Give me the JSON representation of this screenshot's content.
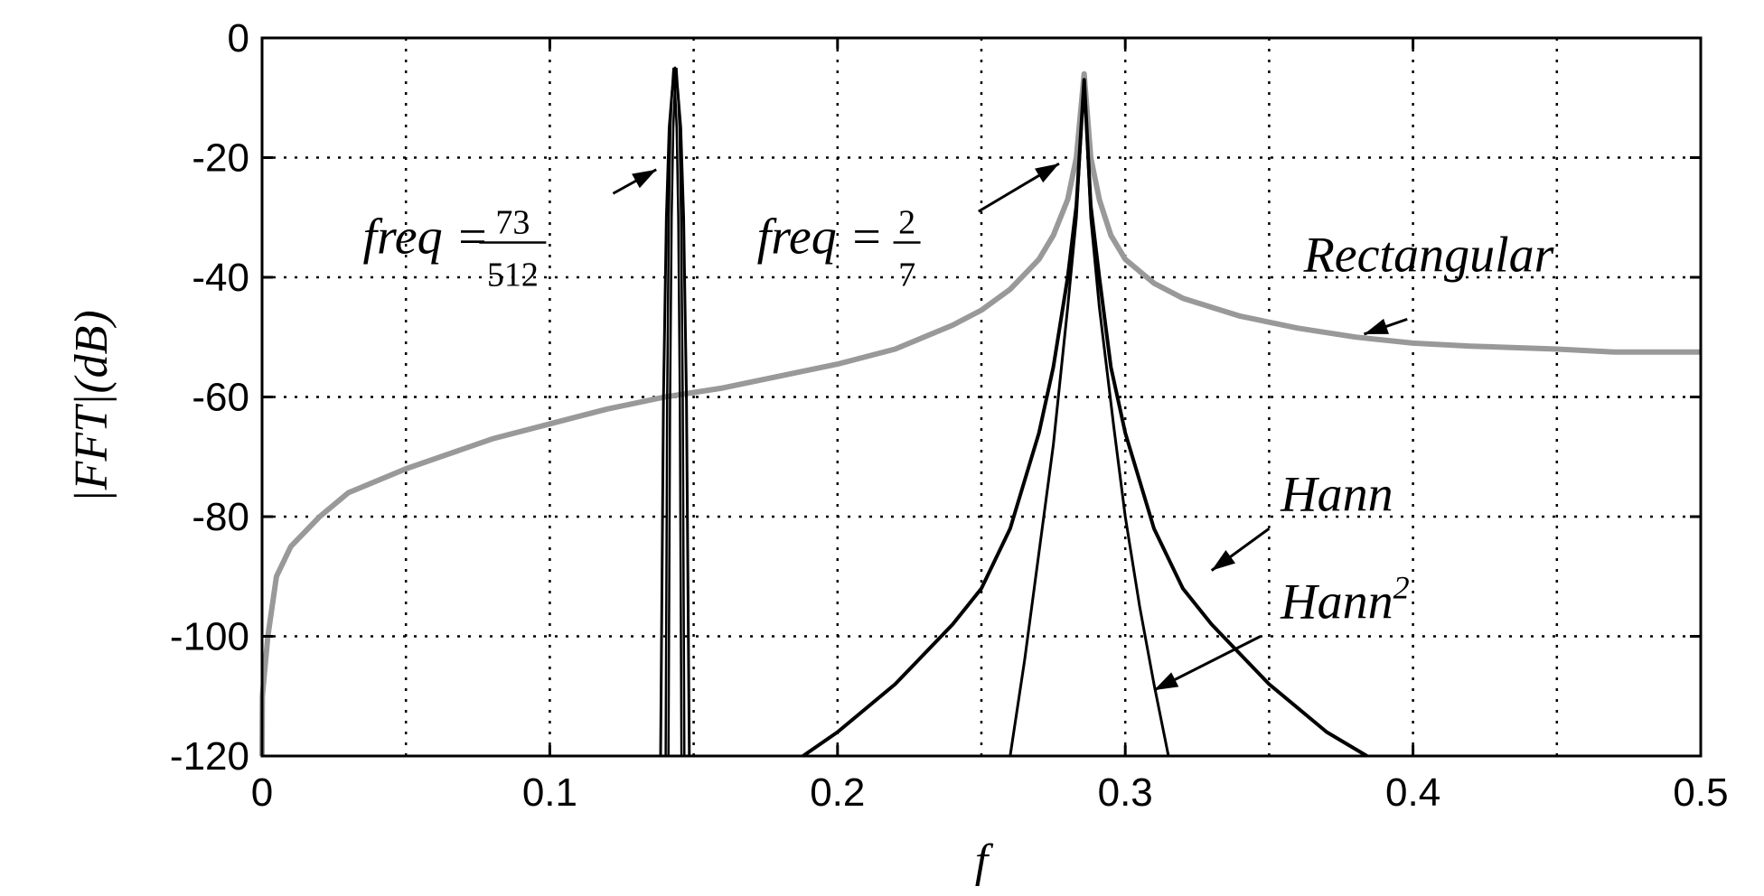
{
  "chart_data": {
    "type": "line",
    "xlabel": "f",
    "ylabel": "|FFT|(dB)",
    "xlim": [
      0,
      0.5
    ],
    "ylim": [
      -120,
      0
    ],
    "xticks": [
      "0",
      "0.1",
      "0.2",
      "0.3",
      "0.4",
      "0.5"
    ],
    "yticks": [
      "0",
      "-20",
      "-40",
      "-60",
      "-80",
      "-100",
      "-120"
    ],
    "grid": true,
    "series": [
      {
        "name": "Rectangular",
        "color": "#999999",
        "x": [
          0.0,
          0.0001,
          0.002,
          0.005,
          0.01,
          0.02,
          0.03,
          0.05,
          0.08,
          0.1,
          0.12,
          0.14,
          0.16,
          0.18,
          0.2,
          0.22,
          0.24,
          0.25,
          0.26,
          0.27,
          0.275,
          0.28,
          0.283,
          0.2857,
          0.288,
          0.291,
          0.295,
          0.3,
          0.31,
          0.32,
          0.34,
          0.36,
          0.38,
          0.4,
          0.42,
          0.45,
          0.47,
          0.5
        ],
        "y": [
          -120,
          -110,
          -100,
          -90,
          -85,
          -80,
          -76,
          -72,
          -67,
          -64.5,
          -62,
          -60,
          -58.5,
          -56.5,
          -54.5,
          -52,
          -48,
          -45.5,
          -42,
          -37,
          -33,
          -27,
          -20,
          -6,
          -20,
          -27,
          -33,
          -37,
          -41,
          -43.5,
          -46.5,
          -48.5,
          -50,
          -51,
          -51.5,
          -52,
          -52.5,
          -52.5
        ]
      },
      {
        "name": "Hann",
        "color": "#000000",
        "x": [
          0.188,
          0.2,
          0.22,
          0.24,
          0.25,
          0.26,
          0.27,
          0.275,
          0.28,
          0.283,
          0.2857,
          0.288,
          0.291,
          0.295,
          0.3,
          0.31,
          0.32,
          0.33,
          0.35,
          0.37,
          0.384
        ],
        "y": [
          -120,
          -116,
          -108,
          -98,
          -92,
          -82,
          -66,
          -55,
          -40,
          -28,
          -7,
          -28,
          -40,
          -55,
          -66,
          -82,
          -92,
          -98,
          -108,
          -116,
          -120
        ]
      },
      {
        "name": "Hann²",
        "color": "#000000",
        "x": [
          0.26,
          0.265,
          0.27,
          0.275,
          0.28,
          0.283,
          0.2857,
          0.288,
          0.291,
          0.296,
          0.3,
          0.305,
          0.31,
          0.315
        ],
        "y": [
          -120,
          -104,
          -86,
          -68,
          -45,
          -30,
          -7,
          -30,
          -45,
          -65,
          -80,
          -95,
          -108,
          -120
        ]
      },
      {
        "name": "freq = 73/512",
        "color": "#000000",
        "x": [
          0.1385,
          0.1395,
          0.1405,
          0.1415,
          0.1425,
          0.1435,
          0.1445,
          0.1455,
          0.1465,
          0.1475,
          0.1485
        ],
        "y": [
          -120,
          -60,
          -30,
          -15,
          -9,
          -5,
          -9,
          -15,
          -30,
          -60,
          -120
        ]
      }
    ],
    "annotations": [
      {
        "text": "freq = ",
        "numerator": "73",
        "denominator": "512",
        "x": 0.035,
        "y": -36
      },
      {
        "text": "freq = ",
        "numerator": "2",
        "denominator": "7",
        "x": 0.172,
        "y": -36
      },
      {
        "text": "Rectangular",
        "x": 0.362,
        "y": -39
      },
      {
        "text": "Hann",
        "x": 0.354,
        "y": -79
      },
      {
        "text": "Hann",
        "superscript": "2",
        "x": 0.354,
        "y": -97
      }
    ],
    "arrows": [
      {
        "from": [
          0.122,
          -26
        ],
        "to": [
          0.137,
          -22
        ]
      },
      {
        "from": [
          0.249,
          -29
        ],
        "to": [
          0.277,
          -21
        ]
      },
      {
        "from": [
          0.398,
          -47
        ],
        "to": [
          0.383,
          -49.5
        ]
      },
      {
        "from": [
          0.35,
          -82
        ],
        "to": [
          0.33,
          -89
        ]
      },
      {
        "from": [
          0.347,
          -100
        ],
        "to": [
          0.31,
          -109
        ]
      }
    ]
  }
}
